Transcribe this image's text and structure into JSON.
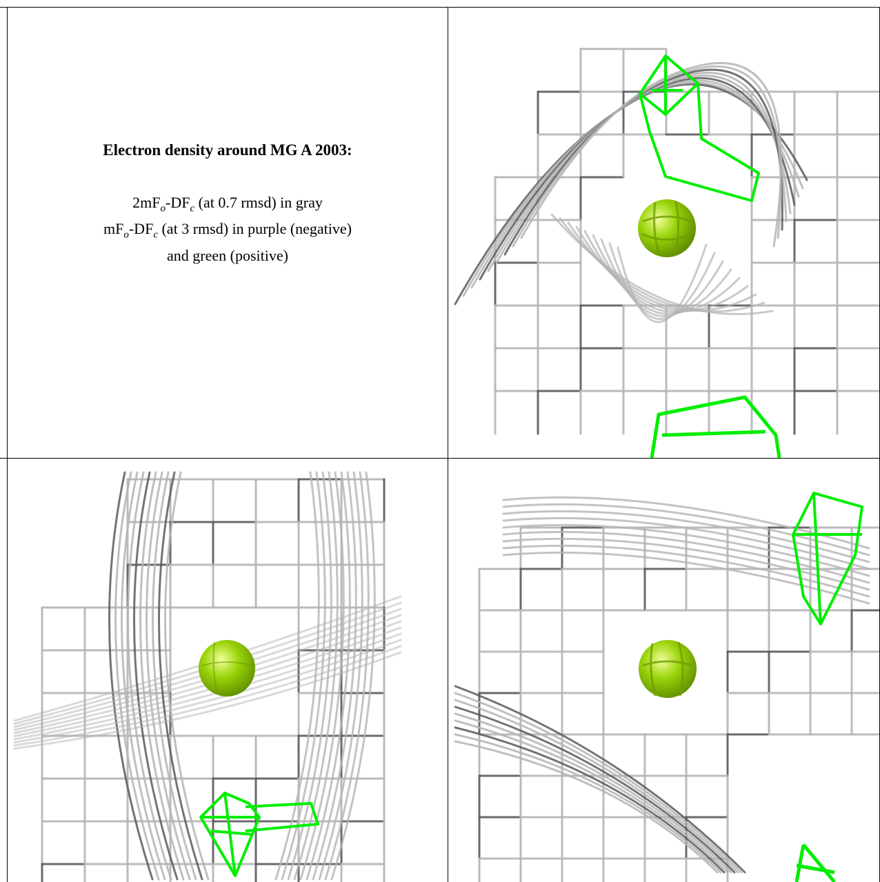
{
  "caption": {
    "title": "Electron density around MG A 2003:",
    "line1": {
      "pre": "2mF",
      "sub1": "o",
      "mid": "-DF",
      "sub2": "c",
      "post": " (at 0.7 rmsd) in gray"
    },
    "line2": {
      "pre": "mF",
      "sub1": "o",
      "mid": "-DF",
      "sub2": "c",
      "post": " (at 3 rmsd) in purple (negative)"
    },
    "line3": "and green (positive)"
  },
  "colors": {
    "mesh_gray": "#b4b4b4",
    "mesh_dark": "#5a5a5a",
    "positive": "#00ee00",
    "ion": "#9ad40a",
    "border": "#000000"
  },
  "panels": [
    {
      "name": "view-top-right"
    },
    {
      "name": "view-bottom-left"
    },
    {
      "name": "view-bottom-right"
    }
  ]
}
